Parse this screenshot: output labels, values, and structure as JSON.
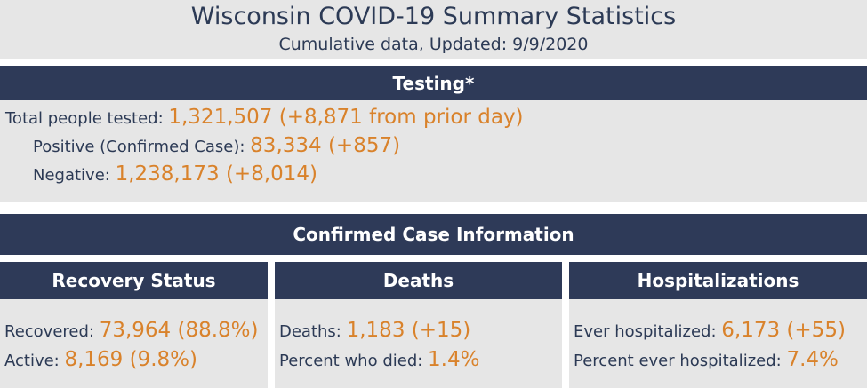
{
  "header": {
    "title": "Wisconsin COVID-19 Summary Statistics",
    "subtitle": "Cumulative data, Updated: 9/9/2020"
  },
  "testing": {
    "heading": "Testing*",
    "total_label": "Total people tested: ",
    "total_value": "1,321,507 (+8,871 from prior day)",
    "positive_label": "Positive (Confirmed Case): ",
    "positive_value": "83,334 (+857)",
    "negative_label": "Negative: ",
    "negative_value": "1,238,173 (+8,014)"
  },
  "confirmed": {
    "heading": "Confirmed Case Information"
  },
  "recovery": {
    "heading": "Recovery Status",
    "recovered_label": "Recovered: ",
    "recovered_value": "73,964 (88.8%)",
    "active_label": "Active: ",
    "active_value": "8,169 (9.8%)"
  },
  "deaths": {
    "heading": "Deaths",
    "deaths_label": "Deaths: ",
    "deaths_value": "1,183 (+15)",
    "percent_label": "Percent who died: ",
    "percent_value": "1.4%"
  },
  "hospitalizations": {
    "heading": "Hospitalizations",
    "ever_label": "Ever hospitalized: ",
    "ever_value": "6,173 (+55)",
    "percent_label": "Percent ever hospitalized: ",
    "percent_value": "7.4%"
  },
  "colors": {
    "header_bar": "#2e3a58",
    "panel_bg": "#e6e6e6",
    "value_accent": "#d9822b",
    "text": "#2c3a55"
  }
}
